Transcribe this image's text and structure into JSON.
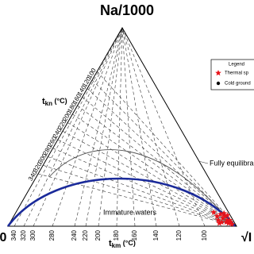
{
  "chart_data": {
    "type": "ternary",
    "title": "Na/1000",
    "left_corner_label": "0",
    "right_corner_label": "√I",
    "tkn_label": "t",
    "tkn_sub": "kn",
    "tkn_unit": " (°C)",
    "tkm_label": "t",
    "tkm_sub": "km",
    "tkm_unit": " (°C)",
    "tkn_ticks": [
      100,
      120,
      140,
      160,
      180,
      200,
      220,
      240,
      260,
      280,
      300,
      320,
      340
    ],
    "tkm_ticks": [
      340,
      320,
      300,
      280,
      240,
      220,
      200,
      180,
      160,
      140,
      120,
      100
    ],
    "full_equilibrium_label": "Fully equilibra",
    "immature_label": "Immature waters",
    "legend_title": "Legend",
    "xlim": [
      0,
      100
    ],
    "ylim": [
      0,
      100
    ],
    "series": [
      {
        "name": "Thermal sp",
        "color": "#e8141b",
        "x": [
          90,
          91.5,
          92,
          93,
          93.5,
          94,
          95,
          95.5,
          96,
          96.5,
          97,
          97.5,
          98,
          92.5,
          94.5,
          96
        ],
        "y": [
          7,
          5,
          3,
          6,
          2,
          4,
          5,
          2,
          3,
          1.5,
          3,
          2,
          1,
          1.5,
          6.5,
          5.5
        ]
      },
      {
        "name": "Cold ground",
        "color": "#000000",
        "x": [],
        "y": []
      }
    ]
  }
}
